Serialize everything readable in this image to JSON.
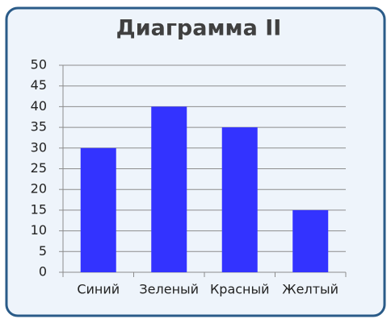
{
  "chart_data": {
    "type": "bar",
    "title": "Диаграмма II",
    "categories": [
      "Синий",
      "Зеленый",
      "Красный",
      "Желтый"
    ],
    "values": [
      30,
      40,
      35,
      15
    ],
    "color": "#3333ff",
    "ylim": [
      0,
      50
    ],
    "yticks": [
      0,
      5,
      10,
      15,
      20,
      25,
      30,
      35,
      40,
      45,
      50
    ],
    "grid": true
  }
}
